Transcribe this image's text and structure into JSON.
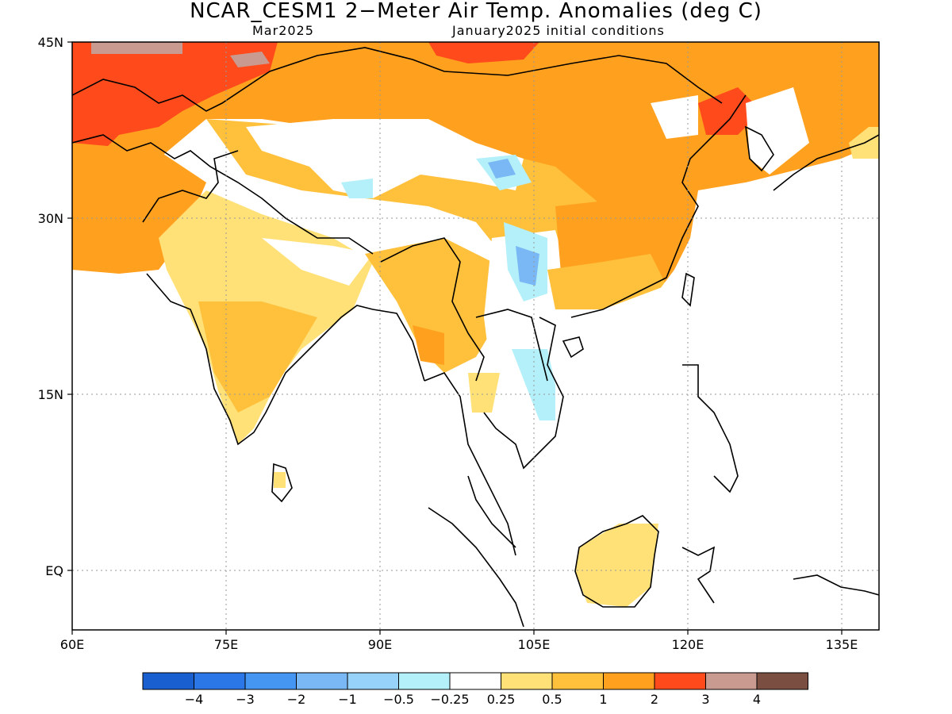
{
  "title": "NCAR_CESM1 2−Meter Air Temp. Anomalies (deg C)",
  "subtitle_left": "Mar2025",
  "subtitle_right": "January2025 initial conditions",
  "map": {
    "lat_labels": [
      "45N",
      "30N",
      "15N",
      "EQ"
    ],
    "lon_labels": [
      "60E",
      "75E",
      "90E",
      "105E",
      "120E",
      "135E"
    ]
  },
  "colorbar": {
    "colors": [
      "#1a5fcf",
      "#2b77e8",
      "#4596f2",
      "#79b7f5",
      "#96d2fa",
      "#b4f0fa",
      "#ffffff",
      "#ffe178",
      "#ffc03c",
      "#ffa01e",
      "#ff4a1c",
      "#c99a8f",
      "#7a4f41"
    ],
    "labels": [
      "−4",
      "−3",
      "−2",
      "−1",
      "−0.5",
      "−0.25",
      "0.25",
      "0.5",
      "1",
      "2",
      "3",
      "4"
    ]
  },
  "legend_colors": {
    "weak_warm": "#ffe178",
    "mod_warm": "#ffc03c",
    "warm": "#ffa01e",
    "hot": "#ff4a1c",
    "very_hot": "#c99a8f",
    "cool_light": "#b4f0fa",
    "cool": "#96d2fa",
    "cool_mid": "#79b7f5"
  }
}
